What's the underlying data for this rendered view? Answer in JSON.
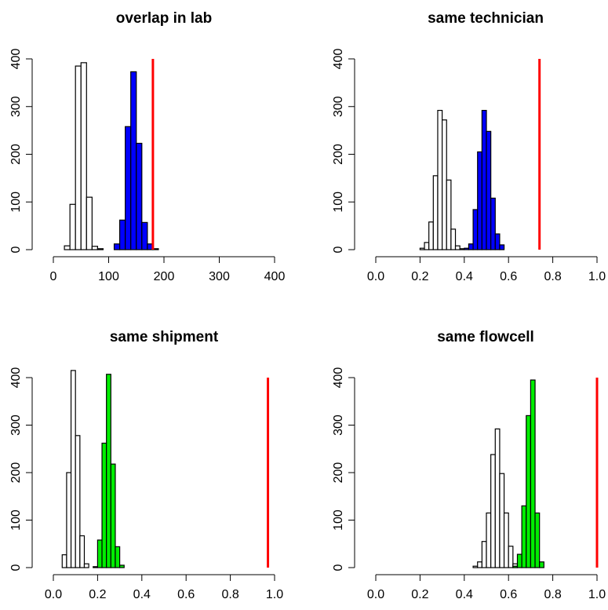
{
  "chart_data": [
    {
      "type": "histogram",
      "title": "overlap in lab",
      "xlabel": "",
      "ylabel": "",
      "xlim": [
        0,
        400
      ],
      "ylim": [
        0,
        400
      ],
      "xticks": [
        "0",
        "100",
        "200",
        "300",
        "400"
      ],
      "yticks": [
        "0",
        "100",
        "200",
        "300",
        "400"
      ],
      "reference_line": {
        "x": 180,
        "height": 400,
        "color": "#ff0000"
      },
      "series": [
        {
          "fill": "#ffffff",
          "bins": [
            {
              "x0": 20,
              "x1": 30,
              "count": 8
            },
            {
              "x0": 30,
              "x1": 40,
              "count": 95
            },
            {
              "x0": 40,
              "x1": 50,
              "count": 385
            },
            {
              "x0": 50,
              "x1": 60,
              "count": 392
            },
            {
              "x0": 60,
              "x1": 70,
              "count": 110
            },
            {
              "x0": 70,
              "x1": 80,
              "count": 7
            },
            {
              "x0": 80,
              "x1": 90,
              "count": 2
            }
          ]
        },
        {
          "fill": "#0000ff",
          "bins": [
            {
              "x0": 110,
              "x1": 120,
              "count": 12
            },
            {
              "x0": 120,
              "x1": 130,
              "count": 62
            },
            {
              "x0": 130,
              "x1": 140,
              "count": 258
            },
            {
              "x0": 140,
              "x1": 150,
              "count": 373
            },
            {
              "x0": 150,
              "x1": 160,
              "count": 223
            },
            {
              "x0": 160,
              "x1": 170,
              "count": 57
            },
            {
              "x0": 170,
              "x1": 180,
              "count": 12
            },
            {
              "x0": 180,
              "x1": 190,
              "count": 2
            }
          ]
        }
      ]
    },
    {
      "type": "histogram",
      "title": "same technician",
      "xlabel": "",
      "ylabel": "",
      "xlim": [
        0,
        1
      ],
      "ylim": [
        0,
        400
      ],
      "xticks": [
        "0.0",
        "0.2",
        "0.4",
        "0.6",
        "0.8",
        "1.0"
      ],
      "yticks": [
        "0",
        "100",
        "200",
        "300",
        "400"
      ],
      "reference_line": {
        "x": 0.74,
        "height": 400,
        "color": "#ff0000"
      },
      "series": [
        {
          "fill": "#ffffff",
          "bins": [
            {
              "x0": 0.2,
              "x1": 0.22,
              "count": 3
            },
            {
              "x0": 0.22,
              "x1": 0.24,
              "count": 15
            },
            {
              "x0": 0.24,
              "x1": 0.26,
              "count": 58
            },
            {
              "x0": 0.26,
              "x1": 0.28,
              "count": 155
            },
            {
              "x0": 0.28,
              "x1": 0.3,
              "count": 292
            },
            {
              "x0": 0.3,
              "x1": 0.32,
              "count": 272
            },
            {
              "x0": 0.32,
              "x1": 0.34,
              "count": 146
            },
            {
              "x0": 0.34,
              "x1": 0.36,
              "count": 43
            },
            {
              "x0": 0.36,
              "x1": 0.38,
              "count": 8
            },
            {
              "x0": 0.38,
              "x1": 0.4,
              "count": 2
            }
          ]
        },
        {
          "fill": "#0000ff",
          "bins": [
            {
              "x0": 0.4,
              "x1": 0.42,
              "count": 3
            },
            {
              "x0": 0.42,
              "x1": 0.44,
              "count": 12
            },
            {
              "x0": 0.44,
              "x1": 0.46,
              "count": 84
            },
            {
              "x0": 0.46,
              "x1": 0.48,
              "count": 205
            },
            {
              "x0": 0.48,
              "x1": 0.5,
              "count": 292
            },
            {
              "x0": 0.5,
              "x1": 0.52,
              "count": 248
            },
            {
              "x0": 0.52,
              "x1": 0.54,
              "count": 108
            },
            {
              "x0": 0.54,
              "x1": 0.56,
              "count": 33
            },
            {
              "x0": 0.56,
              "x1": 0.58,
              "count": 10
            }
          ]
        }
      ]
    },
    {
      "type": "histogram",
      "title": "same shipment",
      "xlabel": "",
      "ylabel": "",
      "xlim": [
        0,
        1
      ],
      "ylim": [
        0,
        400
      ],
      "xticks": [
        "0.0",
        "0.2",
        "0.4",
        "0.6",
        "0.8",
        "1.0"
      ],
      "yticks": [
        "0",
        "100",
        "200",
        "300",
        "400"
      ],
      "reference_line": {
        "x": 0.97,
        "height": 400,
        "color": "#ff0000"
      },
      "series": [
        {
          "fill": "#ffffff",
          "bins": [
            {
              "x0": 0.04,
              "x1": 0.06,
              "count": 27
            },
            {
              "x0": 0.06,
              "x1": 0.08,
              "count": 200
            },
            {
              "x0": 0.08,
              "x1": 0.1,
              "count": 415
            },
            {
              "x0": 0.1,
              "x1": 0.12,
              "count": 278
            },
            {
              "x0": 0.12,
              "x1": 0.14,
              "count": 67
            },
            {
              "x0": 0.14,
              "x1": 0.16,
              "count": 8
            }
          ]
        },
        {
          "fill": "#00ee00",
          "bins": [
            {
              "x0": 0.18,
              "x1": 0.2,
              "count": 2
            },
            {
              "x0": 0.2,
              "x1": 0.22,
              "count": 58
            },
            {
              "x0": 0.22,
              "x1": 0.24,
              "count": 262
            },
            {
              "x0": 0.24,
              "x1": 0.26,
              "count": 407
            },
            {
              "x0": 0.26,
              "x1": 0.28,
              "count": 218
            },
            {
              "x0": 0.28,
              "x1": 0.3,
              "count": 44
            },
            {
              "x0": 0.3,
              "x1": 0.32,
              "count": 5
            }
          ]
        }
      ]
    },
    {
      "type": "histogram",
      "title": "same flowcell",
      "xlabel": "",
      "ylabel": "",
      "xlim": [
        0,
        1
      ],
      "ylim": [
        0,
        400
      ],
      "xticks": [
        "0.0",
        "0.2",
        "0.4",
        "0.6",
        "0.8",
        "1.0"
      ],
      "yticks": [
        "0",
        "100",
        "200",
        "300",
        "400"
      ],
      "reference_line": {
        "x": 1.0,
        "height": 400,
        "color": "#ff0000"
      },
      "series": [
        {
          "fill": "#ffffff",
          "bins": [
            {
              "x0": 0.44,
              "x1": 0.46,
              "count": 3
            },
            {
              "x0": 0.46,
              "x1": 0.48,
              "count": 12
            },
            {
              "x0": 0.48,
              "x1": 0.5,
              "count": 55
            },
            {
              "x0": 0.5,
              "x1": 0.52,
              "count": 115
            },
            {
              "x0": 0.52,
              "x1": 0.54,
              "count": 238
            },
            {
              "x0": 0.54,
              "x1": 0.56,
              "count": 292
            },
            {
              "x0": 0.56,
              "x1": 0.58,
              "count": 198
            },
            {
              "x0": 0.58,
              "x1": 0.6,
              "count": 115
            },
            {
              "x0": 0.6,
              "x1": 0.62,
              "count": 45
            },
            {
              "x0": 0.62,
              "x1": 0.64,
              "count": 8
            }
          ]
        },
        {
          "fill": "#00ee00",
          "bins": [
            {
              "x0": 0.62,
              "x1": 0.64,
              "count": 3
            },
            {
              "x0": 0.64,
              "x1": 0.66,
              "count": 28
            },
            {
              "x0": 0.66,
              "x1": 0.68,
              "count": 130
            },
            {
              "x0": 0.68,
              "x1": 0.7,
              "count": 320
            },
            {
              "x0": 0.7,
              "x1": 0.72,
              "count": 395
            },
            {
              "x0": 0.72,
              "x1": 0.74,
              "count": 115
            },
            {
              "x0": 0.74,
              "x1": 0.76,
              "count": 12
            }
          ]
        }
      ]
    }
  ]
}
